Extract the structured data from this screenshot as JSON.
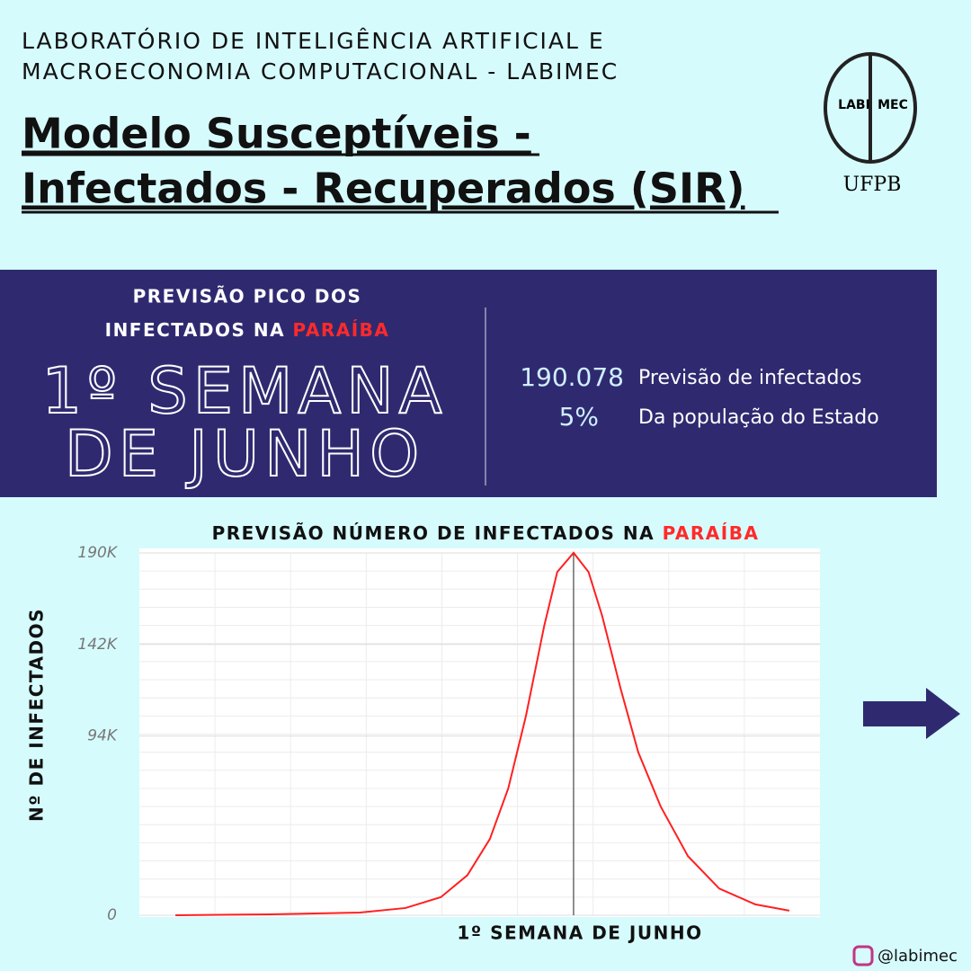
{
  "header": {
    "org": [
      "LABORATÓRIO DE INTELIGÊNCIA ARTIFICIAL E",
      "MACROECONOMIA COMPUTACIONAL - LABIMEC"
    ],
    "title": [
      "Modelo Susceptíveis -",
      "Infectados - Recuperados (SIR)"
    ],
    "logo": {
      "left": "LABI",
      "right": "MEC",
      "university": "UFPB"
    }
  },
  "panel": {
    "heading": {
      "line1": "PREVISÃO PICO DOS",
      "line2": "INFECTADOS NA ",
      "place": "PARAÍBA"
    },
    "peak": [
      "1º SEMANA",
      "DE JUNHO"
    ],
    "stats": [
      {
        "value": "190.078",
        "label": "Previsão de infectados"
      },
      {
        "value": "5%",
        "label": "Da população do Estado"
      }
    ]
  },
  "chart_data": {
    "type": "line",
    "title": "PREVISÃO NÚMERO DE INFECTADOS NA ",
    "title_place": "PARAÍBA",
    "x_label": "1º SEMANA DE JUNHO",
    "y_label": "Nº DE INFECTADOS",
    "x": [
      5.3,
      19.2,
      32.4,
      39.1,
      44.3,
      48.2,
      51.5,
      54.2,
      56.8,
      59.5,
      61.4,
      63.8,
      66.0,
      68.0,
      70.7,
      73.3,
      76.6,
      80.6,
      85.2,
      90.5,
      95.5
    ],
    "series": [
      {
        "name": "Infectados",
        "color": "#ff2020",
        "values": [
          0,
          500,
          1400,
          3800,
          9500,
          21000,
          40000,
          66500,
          104500,
          152000,
          180000,
          190078,
          180000,
          157000,
          119000,
          85500,
          57000,
          31000,
          14000,
          5700,
          2400
        ]
      }
    ],
    "peak_x": 63.8,
    "xlim": [
      0,
      100
    ],
    "ylim": [
      0,
      190000
    ],
    "yticks": [
      {
        "value": 0,
        "label": "0"
      },
      {
        "value": 94000,
        "label": "94K"
      },
      {
        "value": 142000,
        "label": "142K"
      },
      {
        "value": 190000,
        "label": "190K"
      }
    ],
    "grid": true
  },
  "footer": {
    "handle": "@labimec"
  }
}
